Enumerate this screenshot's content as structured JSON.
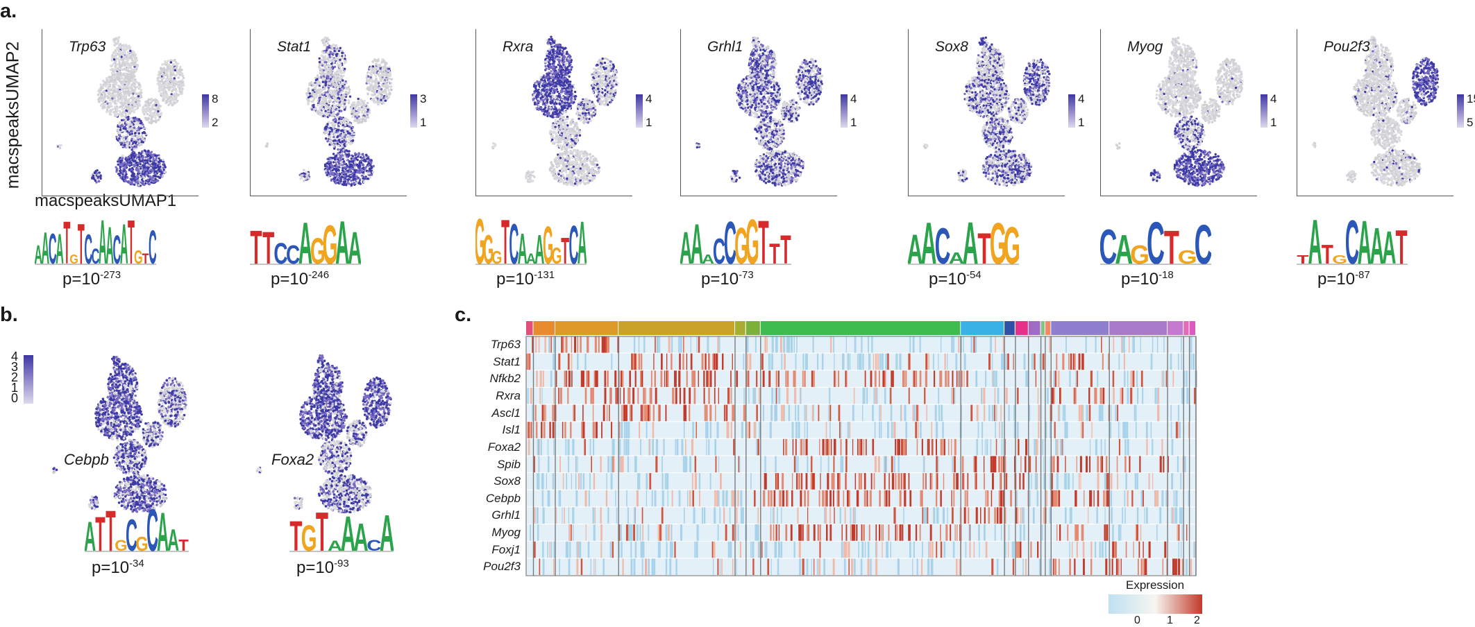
{
  "panels": {
    "a": "a.",
    "b": "b.",
    "c": "c."
  },
  "axes": {
    "ylabel": "macspeaksUMAP2",
    "xlabel": "macspeaksUMAP1"
  },
  "umaps": [
    {
      "gene": "Trp63",
      "cbar_max": "8",
      "cbar_min": "2",
      "pattern": "bottom",
      "pval_base": "p=10",
      "pval_exp": "-273",
      "motif": "AACATGTCCAACATGTC"
    },
    {
      "gene": "Stat1",
      "cbar_max": "3",
      "cbar_min": "1",
      "pattern": "stat",
      "pval_base": "p=10",
      "pval_exp": "-246",
      "motif": "TTCCAGGAA"
    },
    {
      "gene": "Rxra",
      "cbar_max": "4",
      "cbar_min": "1",
      "pattern": "topleft",
      "pval_base": "p=10",
      "pval_exp": "-131",
      "motif": "GGGTCAAAGGTCA"
    },
    {
      "gene": "Grhl1",
      "cbar_max": "4",
      "cbar_min": "1",
      "pattern": "grhl",
      "pval_base": "p=10",
      "pval_exp": "-73",
      "motif": "AAACCGGTTT"
    },
    {
      "gene": "Sox8",
      "cbar_max": "4",
      "cbar_min": "1",
      "pattern": "sox",
      "pval_base": "p=10",
      "pval_exp": "-54",
      "motif": "AACAATGG"
    },
    {
      "gene": "Myog",
      "cbar_max": "4",
      "cbar_min": "1",
      "pattern": "bottom",
      "pval_base": "p=10",
      "pval_exp": "-18",
      "motif": "CAGCTGC"
    },
    {
      "gene": "Pou2f3",
      "cbar_max": "15",
      "cbar_min": "5",
      "pattern": "right",
      "pval_base": "p=10",
      "pval_exp": "-87",
      "motif": "TATGCAAAT"
    }
  ],
  "panel_b": {
    "cbar_ticks": [
      "4",
      "3",
      "2",
      "1",
      "0"
    ],
    "plots": [
      {
        "gene": "Cebpb",
        "pattern": "broad",
        "pval_base": "p=10",
        "pval_exp": "-34",
        "motif": "ATTGCGCAAT"
      },
      {
        "gene": "Foxa2",
        "pattern": "broad2",
        "pval_base": "p=10",
        "pval_exp": "-93",
        "motif": "TGTAAACA"
      }
    ]
  },
  "heatmap": {
    "genes": [
      "Trp63",
      "Stat1",
      "Nfkb2",
      "Rxra",
      "Ascl1",
      "Isl1",
      "Foxa2",
      "Spib",
      "Sox8",
      "Cebpb",
      "Grhl1",
      "Myog",
      "Foxj1",
      "Pou2f3"
    ],
    "clusters": [
      {
        "w": 0.01,
        "color": "#e54e7a"
      },
      {
        "w": 0.03,
        "color": "#ea8a2e"
      },
      {
        "w": 0.087,
        "color": "#dd9a2b"
      },
      {
        "w": 0.16,
        "color": "#c9a227"
      },
      {
        "w": 0.015,
        "color": "#a8ad30"
      },
      {
        "w": 0.02,
        "color": "#7bb13a"
      },
      {
        "w": 0.275,
        "color": "#3dbb4f"
      },
      {
        "w": 0.06,
        "color": "#3ab1e6"
      },
      {
        "w": 0.015,
        "color": "#2f52a8"
      },
      {
        "w": 0.018,
        "color": "#e6308a"
      },
      {
        "w": 0.017,
        "color": "#a06bc4"
      },
      {
        "w": 0.006,
        "color": "#7fc47f"
      },
      {
        "w": 0.008,
        "color": "#f08a6a"
      },
      {
        "w": 0.08,
        "color": "#8f7fd0"
      },
      {
        "w": 0.08,
        "color": "#a97acb"
      },
      {
        "w": 0.022,
        "color": "#c37ad0"
      },
      {
        "w": 0.008,
        "color": "#e66ab8"
      },
      {
        "w": 0.009,
        "color": "#d95bc0"
      }
    ],
    "legend_title": "Expression",
    "legend_ticks": [
      "0",
      "1",
      "2"
    ],
    "scale_colors": [
      "#bfe1f2",
      "#f7f5f0",
      "#c23b2b"
    ]
  }
}
